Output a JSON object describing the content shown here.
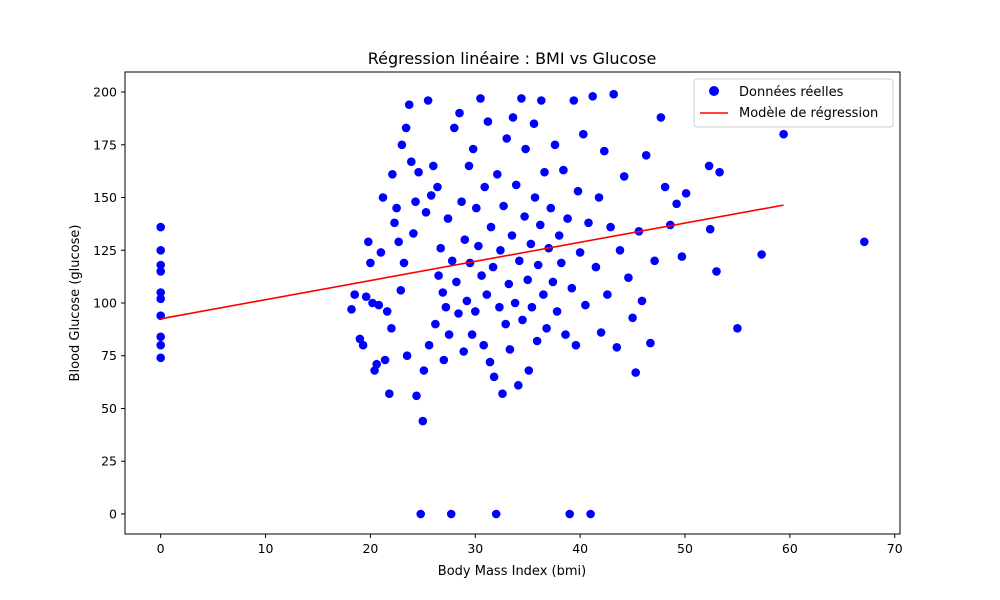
{
  "chart_data": {
    "type": "scatter",
    "title": "Régression linéaire : BMI vs Glucose",
    "xlabel": "Body Mass Index (bmi)",
    "ylabel": "Blood Glucose (glucose)",
    "xlim": [
      -3.4,
      70.5
    ],
    "ylim": [
      -9.5,
      209.5
    ],
    "xticks": [
      0,
      10,
      20,
      30,
      40,
      50,
      60,
      70
    ],
    "yticks": [
      0,
      25,
      50,
      75,
      100,
      125,
      150,
      175,
      200
    ],
    "legend_position": "top-right",
    "colors": {
      "points": "#0000ff",
      "line": "#ff0000"
    },
    "series": [
      {
        "name": "Données réelles",
        "kind": "scatter",
        "points": [
          [
            0,
            136
          ],
          [
            0,
            125
          ],
          [
            0,
            118
          ],
          [
            0,
            115
          ],
          [
            0,
            105
          ],
          [
            0,
            102
          ],
          [
            0,
            94
          ],
          [
            0,
            84
          ],
          [
            0,
            80
          ],
          [
            0,
            74
          ],
          [
            18.2,
            97
          ],
          [
            18.5,
            104
          ],
          [
            19.0,
            83
          ],
          [
            19.3,
            80
          ],
          [
            19.6,
            103
          ],
          [
            19.8,
            129
          ],
          [
            20.0,
            119
          ],
          [
            20.2,
            100
          ],
          [
            20.4,
            68
          ],
          [
            20.6,
            71
          ],
          [
            20.8,
            99
          ],
          [
            21.0,
            124
          ],
          [
            21.2,
            150
          ],
          [
            21.4,
            73
          ],
          [
            21.6,
            96
          ],
          [
            21.8,
            57
          ],
          [
            22.0,
            88
          ],
          [
            22.1,
            161
          ],
          [
            22.3,
            138
          ],
          [
            22.5,
            145
          ],
          [
            22.7,
            129
          ],
          [
            22.9,
            106
          ],
          [
            23.0,
            175
          ],
          [
            23.2,
            119
          ],
          [
            23.4,
            183
          ],
          [
            23.5,
            75
          ],
          [
            23.7,
            194
          ],
          [
            23.9,
            167
          ],
          [
            24.1,
            133
          ],
          [
            24.3,
            148
          ],
          [
            24.4,
            56
          ],
          [
            24.6,
            162
          ],
          [
            24.8,
            0
          ],
          [
            25.0,
            44
          ],
          [
            25.1,
            68
          ],
          [
            25.3,
            143
          ],
          [
            25.5,
            196
          ],
          [
            25.6,
            80
          ],
          [
            25.8,
            151
          ],
          [
            26.0,
            165
          ],
          [
            26.2,
            90
          ],
          [
            26.4,
            155
          ],
          [
            26.5,
            113
          ],
          [
            26.7,
            126
          ],
          [
            26.9,
            105
          ],
          [
            27.0,
            73
          ],
          [
            27.2,
            98
          ],
          [
            27.4,
            140
          ],
          [
            27.5,
            85
          ],
          [
            27.7,
            0
          ],
          [
            27.8,
            120
          ],
          [
            28.0,
            183
          ],
          [
            28.2,
            110
          ],
          [
            28.4,
            95
          ],
          [
            28.5,
            190
          ],
          [
            28.7,
            148
          ],
          [
            28.9,
            77
          ],
          [
            29.0,
            130
          ],
          [
            29.2,
            101
          ],
          [
            29.4,
            165
          ],
          [
            29.5,
            119
          ],
          [
            29.7,
            85
          ],
          [
            29.8,
            173
          ],
          [
            30.0,
            96
          ],
          [
            30.1,
            145
          ],
          [
            30.3,
            127
          ],
          [
            30.5,
            197
          ],
          [
            30.6,
            113
          ],
          [
            30.8,
            80
          ],
          [
            30.9,
            155
          ],
          [
            31.1,
            104
          ],
          [
            31.2,
            186
          ],
          [
            31.4,
            72
          ],
          [
            31.5,
            136
          ],
          [
            31.7,
            117
          ],
          [
            31.8,
            65
          ],
          [
            32.0,
            0
          ],
          [
            32.1,
            161
          ],
          [
            32.3,
            98
          ],
          [
            32.4,
            125
          ],
          [
            32.6,
            57
          ],
          [
            32.7,
            146
          ],
          [
            32.9,
            90
          ],
          [
            33.0,
            178
          ],
          [
            33.2,
            109
          ],
          [
            33.3,
            78
          ],
          [
            33.5,
            132
          ],
          [
            33.6,
            188
          ],
          [
            33.8,
            100
          ],
          [
            33.9,
            156
          ],
          [
            34.1,
            61
          ],
          [
            34.2,
            120
          ],
          [
            34.4,
            197
          ],
          [
            34.5,
            92
          ],
          [
            34.7,
            141
          ],
          [
            34.8,
            173
          ],
          [
            35.0,
            111
          ],
          [
            35.1,
            68
          ],
          [
            35.3,
            128
          ],
          [
            35.4,
            98
          ],
          [
            35.6,
            185
          ],
          [
            35.7,
            150
          ],
          [
            35.9,
            82
          ],
          [
            36.0,
            118
          ],
          [
            36.2,
            137
          ],
          [
            36.3,
            196
          ],
          [
            36.5,
            104
          ],
          [
            36.6,
            162
          ],
          [
            36.8,
            88
          ],
          [
            37.0,
            126
          ],
          [
            37.2,
            145
          ],
          [
            37.4,
            110
          ],
          [
            37.6,
            175
          ],
          [
            37.8,
            96
          ],
          [
            38.0,
            132
          ],
          [
            38.2,
            119
          ],
          [
            38.4,
            163
          ],
          [
            38.6,
            85
          ],
          [
            38.8,
            140
          ],
          [
            39.0,
            0
          ],
          [
            39.2,
            107
          ],
          [
            39.4,
            196
          ],
          [
            39.6,
            80
          ],
          [
            39.8,
            153
          ],
          [
            40.0,
            124
          ],
          [
            40.3,
            180
          ],
          [
            40.5,
            99
          ],
          [
            40.8,
            138
          ],
          [
            41.0,
            0
          ],
          [
            41.2,
            198
          ],
          [
            41.5,
            117
          ],
          [
            41.8,
            150
          ],
          [
            42.0,
            86
          ],
          [
            42.3,
            172
          ],
          [
            42.6,
            104
          ],
          [
            42.9,
            136
          ],
          [
            43.2,
            199
          ],
          [
            43.5,
            79
          ],
          [
            43.8,
            125
          ],
          [
            44.2,
            160
          ],
          [
            44.6,
            112
          ],
          [
            45.0,
            93
          ],
          [
            45.3,
            67
          ],
          [
            45.6,
            134
          ],
          [
            45.9,
            101
          ],
          [
            46.3,
            170
          ],
          [
            46.7,
            81
          ],
          [
            47.1,
            120
          ],
          [
            47.7,
            188
          ],
          [
            48.1,
            155
          ],
          [
            48.6,
            137
          ],
          [
            49.2,
            147
          ],
          [
            49.7,
            122
          ],
          [
            50.1,
            152
          ],
          [
            52.3,
            165
          ],
          [
            52.4,
            135
          ],
          [
            53.0,
            115
          ],
          [
            53.3,
            162
          ],
          [
            55.0,
            88
          ],
          [
            57.3,
            123
          ],
          [
            59.4,
            180
          ],
          [
            67.1,
            129
          ]
        ]
      },
      {
        "name": "Modèle de régression",
        "kind": "line",
        "points": [
          [
            0,
            92.5
          ],
          [
            59.4,
            146.4
          ]
        ]
      }
    ]
  }
}
